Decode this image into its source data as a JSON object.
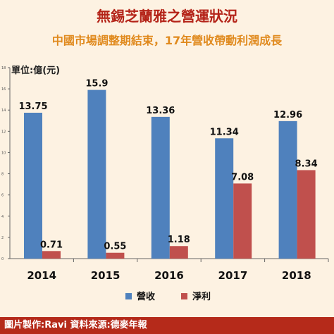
{
  "header": {
    "title": "無錫芝蘭雅之營運狀況",
    "subtitle": "中國市場調整期結束，17年營收帶動利潤成長"
  },
  "colors": {
    "title": "#b42318",
    "subtitle": "#e08a1e",
    "revenue": "#4f81bd",
    "profit": "#c0504d",
    "background": "#fdf2e2",
    "footer_bg": "#b52a1a"
  },
  "chart_data": {
    "type": "bar",
    "ylabel": "單位:億(元)",
    "categories": [
      "2014",
      "2015",
      "2016",
      "2017",
      "2018"
    ],
    "ylim": [
      0,
      18
    ],
    "yticks": [
      0,
      2,
      4,
      6,
      8,
      10,
      12,
      14,
      16,
      18
    ],
    "grid": false,
    "legend_position": "bottom",
    "series": [
      {
        "name": "營收",
        "values": [
          13.75,
          15.9,
          13.36,
          11.34,
          12.96
        ],
        "labels": [
          "13.75",
          "15.9",
          "13.36",
          "11.34",
          "12.96"
        ]
      },
      {
        "name": "淨利",
        "values": [
          0.71,
          0.55,
          1.18,
          7.08,
          8.34
        ],
        "labels": [
          "0.71",
          "0.55",
          "1.18",
          "7.08",
          "8.34"
        ]
      }
    ]
  },
  "footer": {
    "credit": "圖片製作:Ravi  資料來源:德麥年報"
  }
}
